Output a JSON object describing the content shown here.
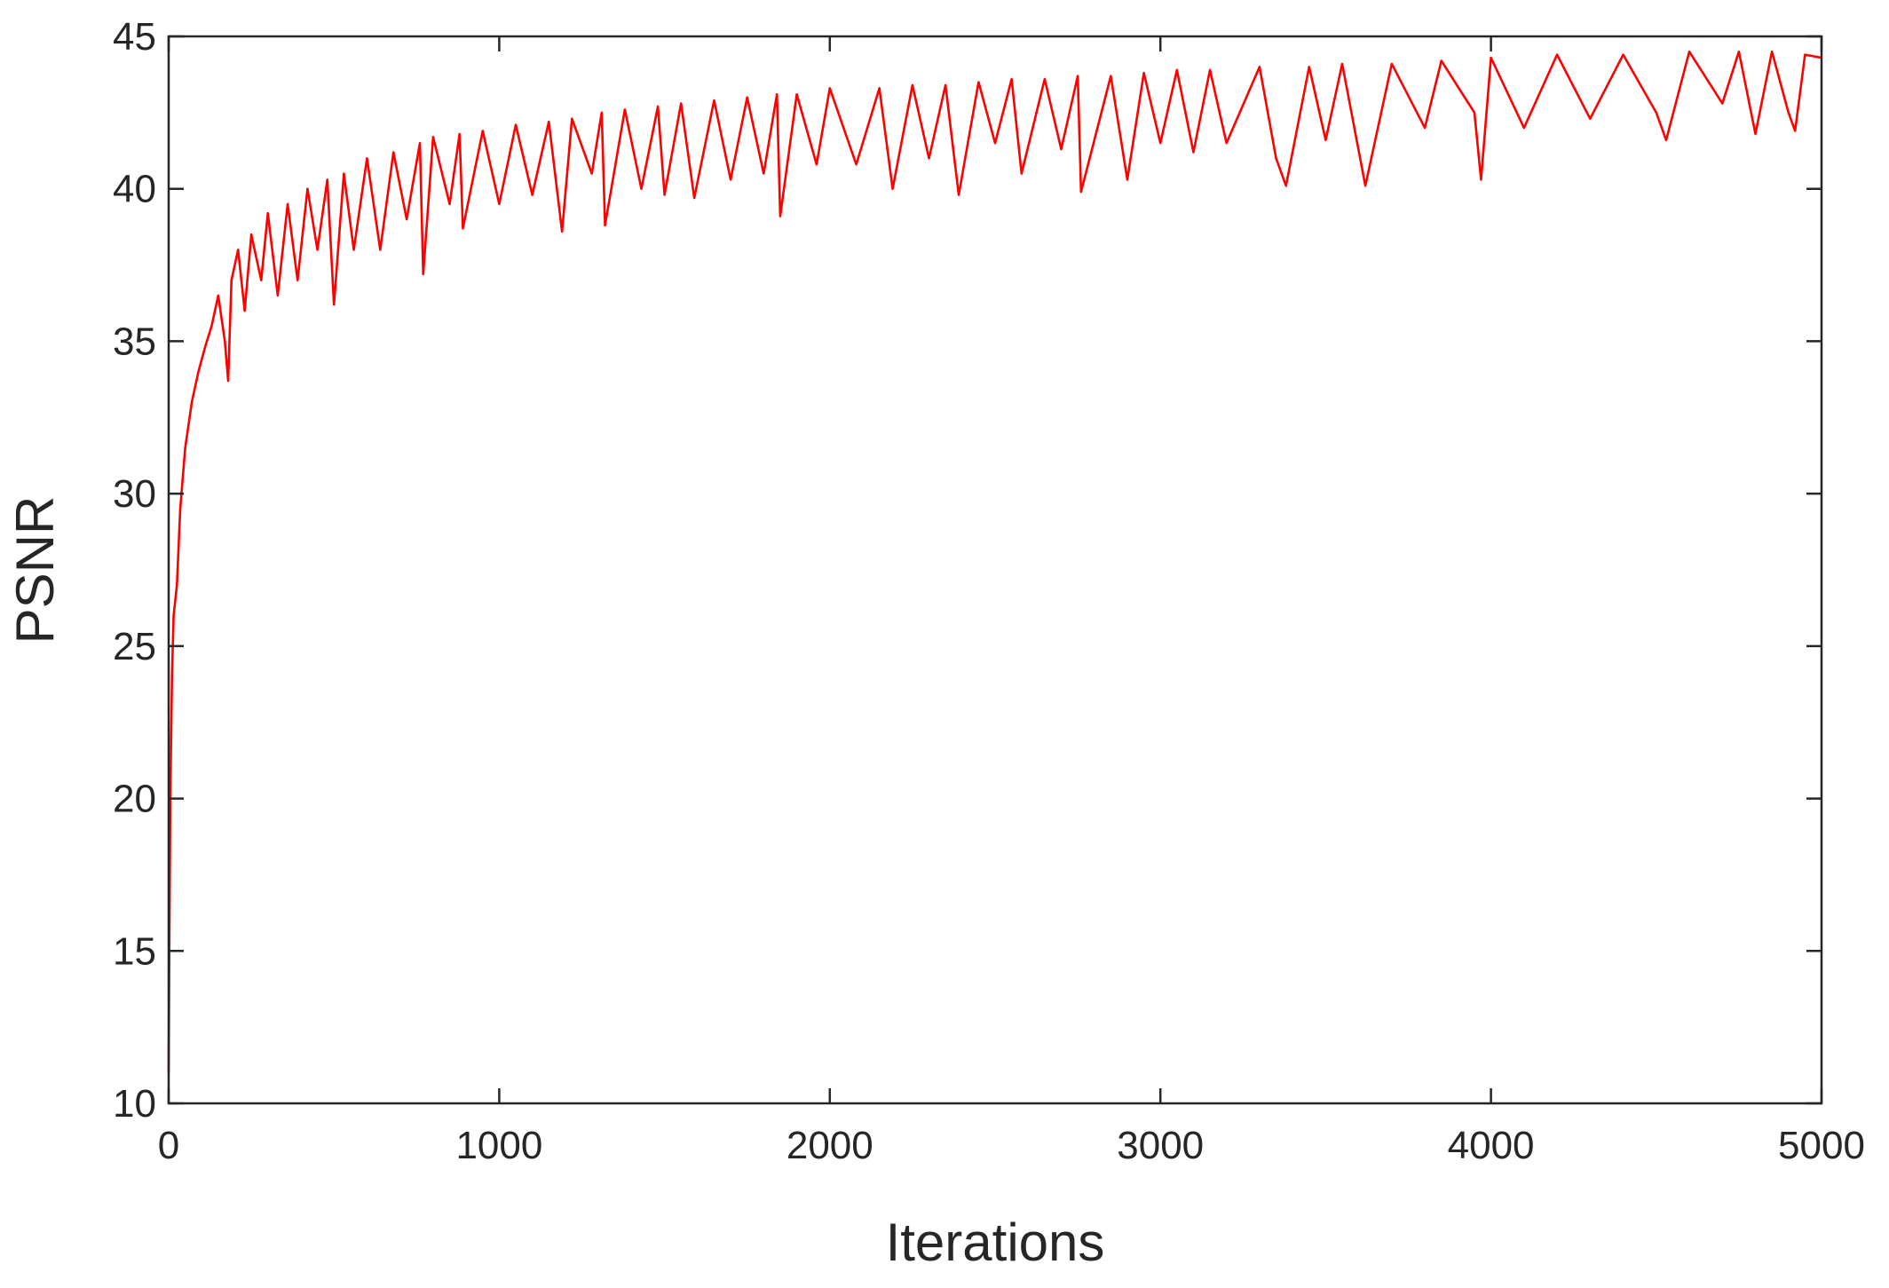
{
  "chart_data": {
    "type": "line",
    "xlabel": "Iterations",
    "ylabel": "PSNR",
    "xlim": [
      0,
      5000
    ],
    "ylim": [
      10,
      45
    ],
    "xticks": [
      0,
      1000,
      2000,
      3000,
      4000,
      5000
    ],
    "yticks": [
      10,
      15,
      20,
      25,
      30,
      35,
      40,
      45
    ],
    "grid": false,
    "series": [
      {
        "color": "#ff0000",
        "x": [
          0,
          2,
          5,
          10,
          15,
          25,
          35,
          50,
          70,
          90,
          110,
          130,
          150,
          170,
          180,
          190,
          210,
          230,
          250,
          280,
          300,
          330,
          360,
          390,
          420,
          450,
          480,
          500,
          530,
          560,
          600,
          640,
          680,
          720,
          760,
          770,
          800,
          850,
          880,
          890,
          950,
          1000,
          1050,
          1100,
          1150,
          1190,
          1220,
          1280,
          1310,
          1320,
          1380,
          1430,
          1480,
          1500,
          1550,
          1590,
          1650,
          1700,
          1750,
          1800,
          1840,
          1850,
          1900,
          1960,
          2000,
          2080,
          2150,
          2190,
          2250,
          2300,
          2350,
          2390,
          2450,
          2500,
          2550,
          2580,
          2650,
          2700,
          2750,
          2760,
          2850,
          2900,
          2950,
          3000,
          3050,
          3100,
          3150,
          3200,
          3300,
          3350,
          3380,
          3450,
          3500,
          3550,
          3620,
          3700,
          3800,
          3850,
          3950,
          3970,
          4000,
          4100,
          4200,
          4300,
          4400,
          4500,
          4530,
          4600,
          4700,
          4750,
          4800,
          4850,
          4900,
          4920,
          4950,
          5000
        ],
        "values": [
          11,
          15,
          20,
          24,
          26,
          27,
          29.5,
          31.5,
          33,
          34,
          34.8,
          35.5,
          36.5,
          35,
          33.7,
          37,
          38,
          36,
          38.5,
          37,
          39.2,
          36.5,
          39.5,
          37,
          40,
          38,
          40.3,
          36.2,
          40.5,
          38,
          41,
          38,
          41.2,
          39,
          41.5,
          37.2,
          41.7,
          39.5,
          41.8,
          38.7,
          41.9,
          39.5,
          42.1,
          39.8,
          42.2,
          38.6,
          42.3,
          40.5,
          42.5,
          38.8,
          42.6,
          40,
          42.7,
          39.8,
          42.8,
          39.7,
          42.9,
          40.3,
          43,
          40.5,
          43.1,
          39.1,
          43.1,
          40.8,
          43.3,
          40.8,
          43.3,
          40,
          43.4,
          41,
          43.4,
          39.8,
          43.5,
          41.5,
          43.6,
          40.5,
          43.6,
          41.3,
          43.7,
          39.9,
          43.7,
          40.3,
          43.8,
          41.5,
          43.9,
          41.2,
          43.9,
          41.5,
          44,
          41,
          40.1,
          44,
          41.6,
          44.1,
          40.1,
          44.1,
          42,
          44.2,
          42.5,
          40.3,
          44.3,
          42,
          44.4,
          42.3,
          44.4,
          42.5,
          41.6,
          44.5,
          42.8,
          44.5,
          41.8,
          44.5,
          42.5,
          41.9,
          44.4,
          44.3
        ]
      }
    ]
  }
}
